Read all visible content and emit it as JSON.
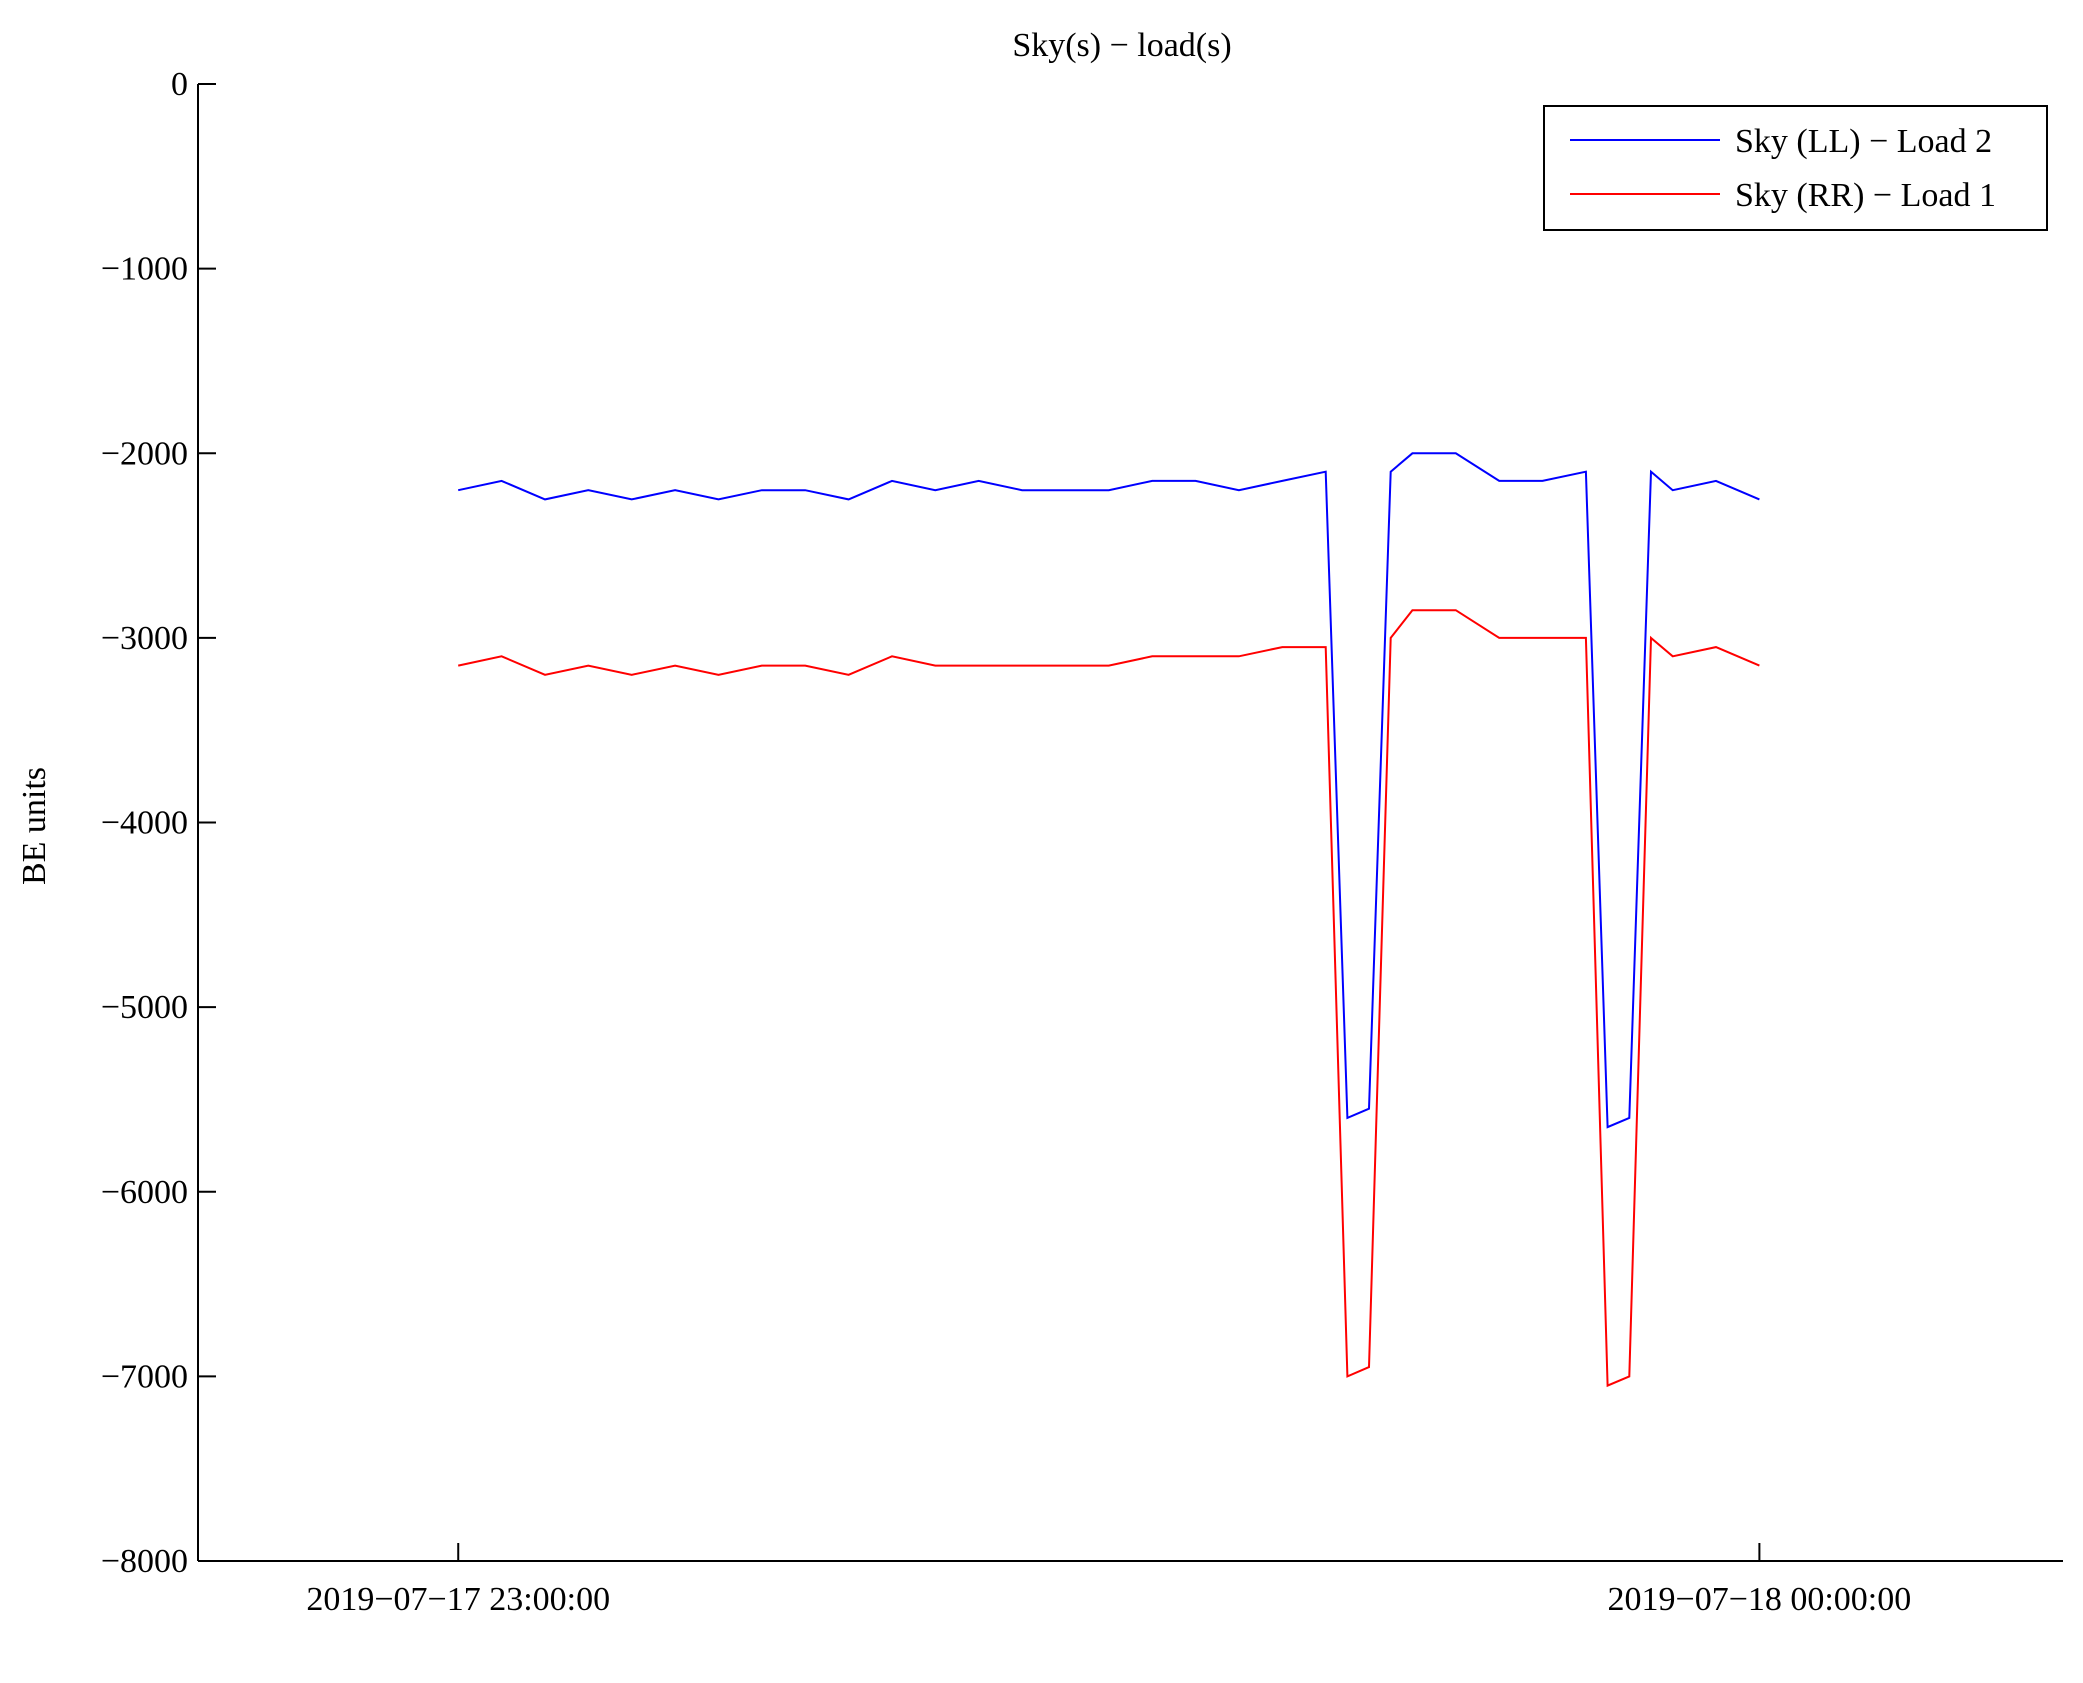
{
  "chart_data": {
    "type": "line",
    "title": "Sky(s) − load(s)",
    "xlabel": "",
    "ylabel": "BE units",
    "ylim": [
      -8000,
      0
    ],
    "yticks": [
      0,
      -1000,
      -2000,
      -3000,
      -4000,
      -5000,
      -6000,
      -7000,
      -8000
    ],
    "ytick_labels": [
      "0",
      "−1000",
      "−2000",
      "−3000",
      "−4000",
      "−5000",
      "−6000",
      "−7000",
      "−8000"
    ],
    "xrange": [
      "2019-07-17 22:48:00",
      "2019-07-18 00:14:00"
    ],
    "xticks": [
      "2019-07-17 23:00:00",
      "2019-07-18 00:00:00"
    ],
    "xtick_labels": [
      "2019−07−17 23:00:00",
      "2019−07−18 00:00:00"
    ],
    "grid": false,
    "legend_position": "top-right",
    "series": [
      {
        "name": "Sky (LL) − Load 2",
        "color": "#0000ff",
        "x": [
          "2019-07-17 23:00:00",
          "2019-07-17 23:02:00",
          "2019-07-17 23:04:00",
          "2019-07-17 23:06:00",
          "2019-07-17 23:08:00",
          "2019-07-17 23:10:00",
          "2019-07-17 23:12:00",
          "2019-07-17 23:14:00",
          "2019-07-17 23:16:00",
          "2019-07-17 23:18:00",
          "2019-07-17 23:20:00",
          "2019-07-17 23:22:00",
          "2019-07-17 23:24:00",
          "2019-07-17 23:26:00",
          "2019-07-17 23:28:00",
          "2019-07-17 23:30:00",
          "2019-07-17 23:32:00",
          "2019-07-17 23:34:00",
          "2019-07-17 23:36:00",
          "2019-07-17 23:38:00",
          "2019-07-17 23:40:00",
          "2019-07-17 23:41:00",
          "2019-07-17 23:42:00",
          "2019-07-17 23:43:00",
          "2019-07-17 23:44:00",
          "2019-07-17 23:46:00",
          "2019-07-17 23:48:00",
          "2019-07-17 23:50:00",
          "2019-07-17 23:52:00",
          "2019-07-17 23:53:00",
          "2019-07-17 23:54:00",
          "2019-07-17 23:55:00",
          "2019-07-17 23:56:00",
          "2019-07-17 23:58:00",
          "2019-07-18 00:00:00"
        ],
        "values": [
          -2200,
          -2150,
          -2250,
          -2200,
          -2250,
          -2200,
          -2250,
          -2200,
          -2200,
          -2250,
          -2150,
          -2200,
          -2150,
          -2200,
          -2200,
          -2200,
          -2150,
          -2150,
          -2200,
          -2150,
          -2100,
          -5600,
          -5550,
          -2100,
          -2000,
          -2000,
          -2150,
          -2150,
          -2100,
          -5650,
          -5600,
          -2100,
          -2200,
          -2150,
          -2250
        ]
      },
      {
        "name": "Sky (RR) − Load 1",
        "color": "#ff0000",
        "x": [
          "2019-07-17 23:00:00",
          "2019-07-17 23:02:00",
          "2019-07-17 23:04:00",
          "2019-07-17 23:06:00",
          "2019-07-17 23:08:00",
          "2019-07-17 23:10:00",
          "2019-07-17 23:12:00",
          "2019-07-17 23:14:00",
          "2019-07-17 23:16:00",
          "2019-07-17 23:18:00",
          "2019-07-17 23:20:00",
          "2019-07-17 23:22:00",
          "2019-07-17 23:24:00",
          "2019-07-17 23:26:00",
          "2019-07-17 23:28:00",
          "2019-07-17 23:30:00",
          "2019-07-17 23:32:00",
          "2019-07-17 23:34:00",
          "2019-07-17 23:36:00",
          "2019-07-17 23:38:00",
          "2019-07-17 23:40:00",
          "2019-07-17 23:41:00",
          "2019-07-17 23:42:00",
          "2019-07-17 23:43:00",
          "2019-07-17 23:44:00",
          "2019-07-17 23:46:00",
          "2019-07-17 23:48:00",
          "2019-07-17 23:50:00",
          "2019-07-17 23:52:00",
          "2019-07-17 23:53:00",
          "2019-07-17 23:54:00",
          "2019-07-17 23:55:00",
          "2019-07-17 23:56:00",
          "2019-07-17 23:58:00",
          "2019-07-18 00:00:00"
        ],
        "values": [
          -3150,
          -3100,
          -3200,
          -3150,
          -3200,
          -3150,
          -3200,
          -3150,
          -3150,
          -3200,
          -3100,
          -3150,
          -3150,
          -3150,
          -3150,
          -3150,
          -3100,
          -3100,
          -3100,
          -3050,
          -3050,
          -7000,
          -6950,
          -3000,
          -2850,
          -2850,
          -3000,
          -3000,
          -3000,
          -7050,
          -7000,
          -3000,
          -3100,
          -3050,
          -3150
        ]
      }
    ]
  }
}
